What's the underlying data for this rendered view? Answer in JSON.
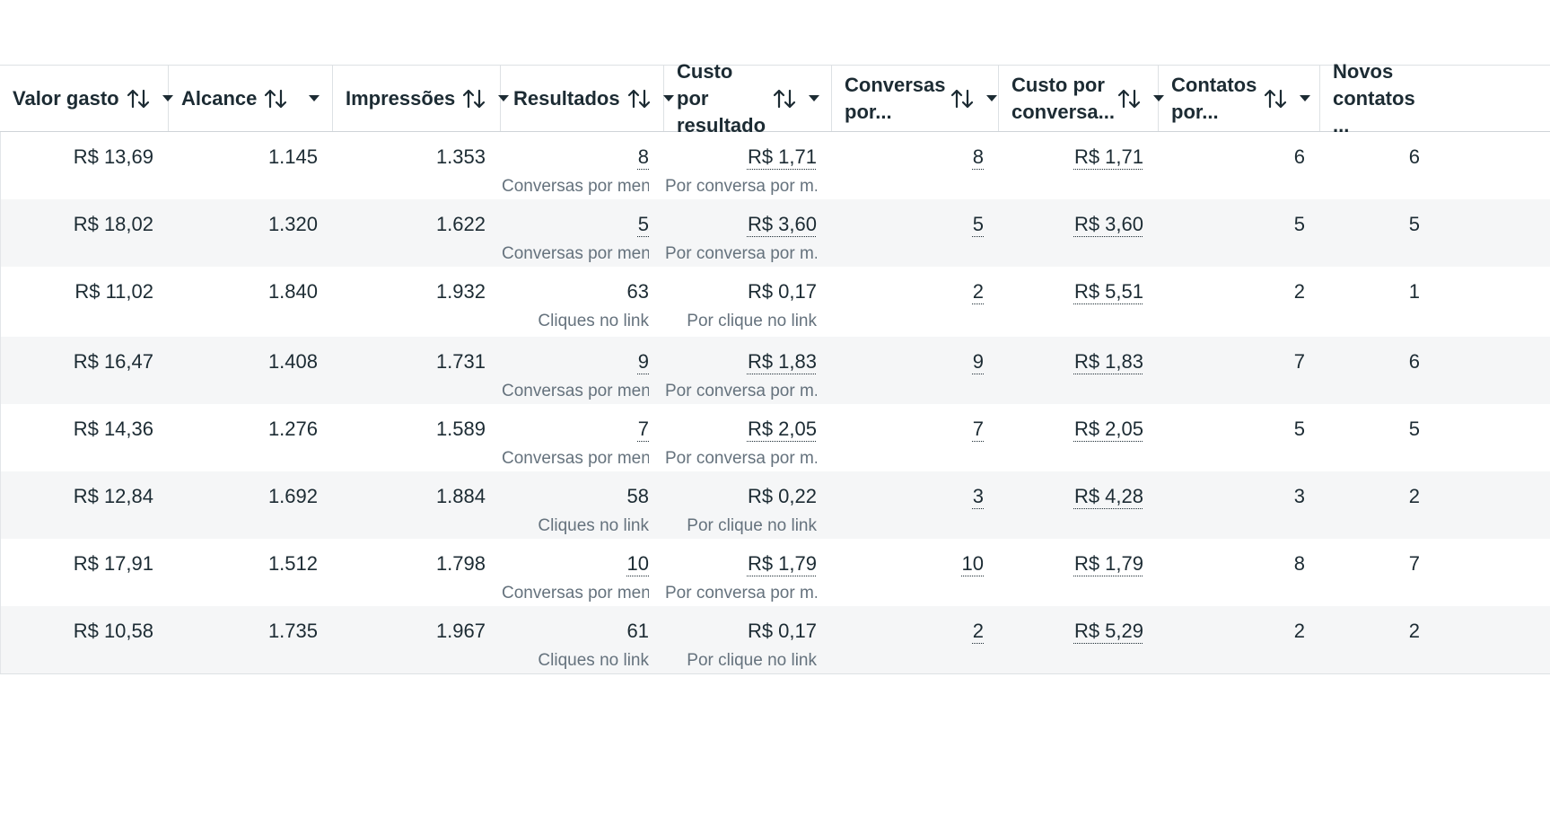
{
  "columns": [
    {
      "key": "spent",
      "label": "Valor gasto"
    },
    {
      "key": "reach",
      "label": "Alcance"
    },
    {
      "key": "impressions",
      "label": "Impressões"
    },
    {
      "key": "results",
      "label": "Resultados"
    },
    {
      "key": "cost_per_result",
      "label": "Custo por resultado"
    },
    {
      "key": "conversations",
      "label": "Conversas por..."
    },
    {
      "key": "cost_per_conversation",
      "label": "Custo por conversa..."
    },
    {
      "key": "contacts",
      "label": "Contatos por..."
    },
    {
      "key": "new_contacts",
      "label": "Novos contatos ..."
    }
  ],
  "rows": [
    {
      "spent": "R$ 13,69",
      "reach": "1.145",
      "impressions": "1.353",
      "results": "8",
      "results_sub": "Conversas por men...",
      "cost_per_result": "R$ 1,71",
      "cost_sub": "Por conversa por m...",
      "conversations": "8",
      "cost_per_conversation": "R$ 1,71",
      "contacts": "6",
      "new_contacts": "6"
    },
    {
      "spent": "R$ 18,02",
      "reach": "1.320",
      "impressions": "1.622",
      "results": "5",
      "results_sub": "Conversas por men...",
      "cost_per_result": "R$ 3,60",
      "cost_sub": "Por conversa por m...",
      "conversations": "5",
      "cost_per_conversation": "R$ 3,60",
      "contacts": "5",
      "new_contacts": "5"
    },
    {
      "spent": "R$ 11,02",
      "reach": "1.840",
      "impressions": "1.932",
      "results": "63",
      "results_sub": "Cliques no link",
      "cost_per_result": "R$ 0,17",
      "cost_sub": "Por clique no link",
      "conversations": "2",
      "cost_per_conversation": "R$ 5,51",
      "contacts": "2",
      "new_contacts": "1"
    },
    {
      "spent": "R$ 16,47",
      "reach": "1.408",
      "impressions": "1.731",
      "results": "9",
      "results_sub": "Conversas por men...",
      "cost_per_result": "R$ 1,83",
      "cost_sub": "Por conversa por m...",
      "conversations": "9",
      "cost_per_conversation": "R$ 1,83",
      "contacts": "7",
      "new_contacts": "6"
    },
    {
      "spent": "R$ 14,36",
      "reach": "1.276",
      "impressions": "1.589",
      "results": "7",
      "results_sub": "Conversas por men...",
      "cost_per_result": "R$ 2,05",
      "cost_sub": "Por conversa por m...",
      "conversations": "7",
      "cost_per_conversation": "R$ 2,05",
      "contacts": "5",
      "new_contacts": "5"
    },
    {
      "spent": "R$ 12,84",
      "reach": "1.692",
      "impressions": "1.884",
      "results": "58",
      "results_sub": "Cliques no link",
      "cost_per_result": "R$ 0,22",
      "cost_sub": "Por clique no link",
      "conversations": "3",
      "cost_per_conversation": "R$ 4,28",
      "contacts": "3",
      "new_contacts": "2"
    },
    {
      "spent": "R$ 17,91",
      "reach": "1.512",
      "impressions": "1.798",
      "results": "10",
      "results_sub": "Conversas por men...",
      "cost_per_result": "R$ 1,79",
      "cost_sub": "Por conversa por m...",
      "conversations": "10",
      "cost_per_conversation": "R$ 1,79",
      "contacts": "8",
      "new_contacts": "7"
    },
    {
      "spent": "R$ 10,58",
      "reach": "1.735",
      "impressions": "1.967",
      "results": "61",
      "results_sub": "Cliques no link",
      "cost_per_result": "R$ 0,17",
      "cost_sub": "Por clique no link",
      "conversations": "2",
      "cost_per_conversation": "R$ 5,29",
      "contacts": "2",
      "new_contacts": "2"
    }
  ],
  "icons": {
    "sort": "sort-arrows-icon",
    "menu": "caret-down-icon"
  }
}
